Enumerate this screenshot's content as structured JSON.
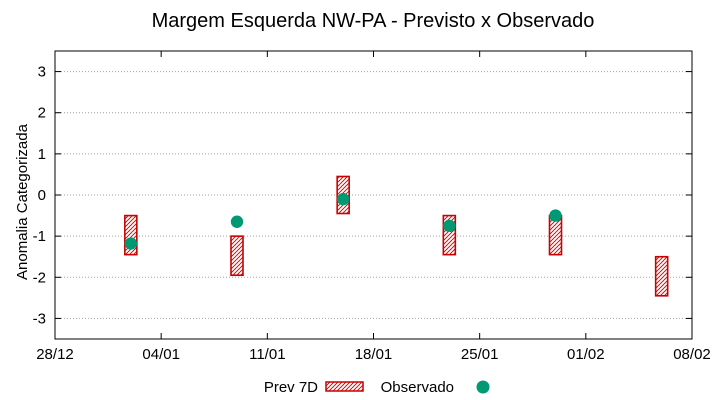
{
  "chart_data": {
    "type": "floating-bar-scatter",
    "title": "Margem Esquerda NW-PA - Previsto x Observado",
    "ylabel": "Anomalia Categorizada",
    "xlabel": "",
    "xlim": [
      "2020-12-28",
      "2021-02-08"
    ],
    "ylim": [
      -3.5,
      3.5
    ],
    "x_ticks": [
      {
        "date": "2020-12-28",
        "label": "28/12"
      },
      {
        "date": "2021-01-04",
        "label": "04/01"
      },
      {
        "date": "2021-01-11",
        "label": "11/01"
      },
      {
        "date": "2021-01-18",
        "label": "18/01"
      },
      {
        "date": "2021-01-25",
        "label": "25/01"
      },
      {
        "date": "2021-02-01",
        "label": "01/02"
      },
      {
        "date": "2021-02-08",
        "label": "08/02"
      }
    ],
    "y_ticks": [
      3,
      2,
      1,
      0,
      -1,
      -2,
      -3
    ],
    "grid": "horizontal-dotted",
    "legend_position": "bottom-center",
    "series": [
      {
        "name": "Prev 7D",
        "kind": "range",
        "color": "#cc0000",
        "points": [
          {
            "date": "2021-01-02",
            "low": -1.45,
            "high": -0.5
          },
          {
            "date": "2021-01-09",
            "low": -1.95,
            "high": -1.0
          },
          {
            "date": "2021-01-16",
            "low": -0.45,
            "high": 0.45
          },
          {
            "date": "2021-01-23",
            "low": -1.45,
            "high": -0.5
          },
          {
            "date": "2021-01-30",
            "low": -1.45,
            "high": -0.5
          },
          {
            "date": "2021-02-06",
            "low": -2.45,
            "high": -1.5
          }
        ]
      },
      {
        "name": "Observado",
        "kind": "point",
        "color": "#009973",
        "points": [
          {
            "date": "2021-01-02",
            "value": -1.18
          },
          {
            "date": "2021-01-09",
            "value": -0.65
          },
          {
            "date": "2021-01-16",
            "value": -0.1
          },
          {
            "date": "2021-01-23",
            "value": -0.75
          },
          {
            "date": "2021-01-30",
            "value": -0.5
          }
        ]
      }
    ]
  }
}
